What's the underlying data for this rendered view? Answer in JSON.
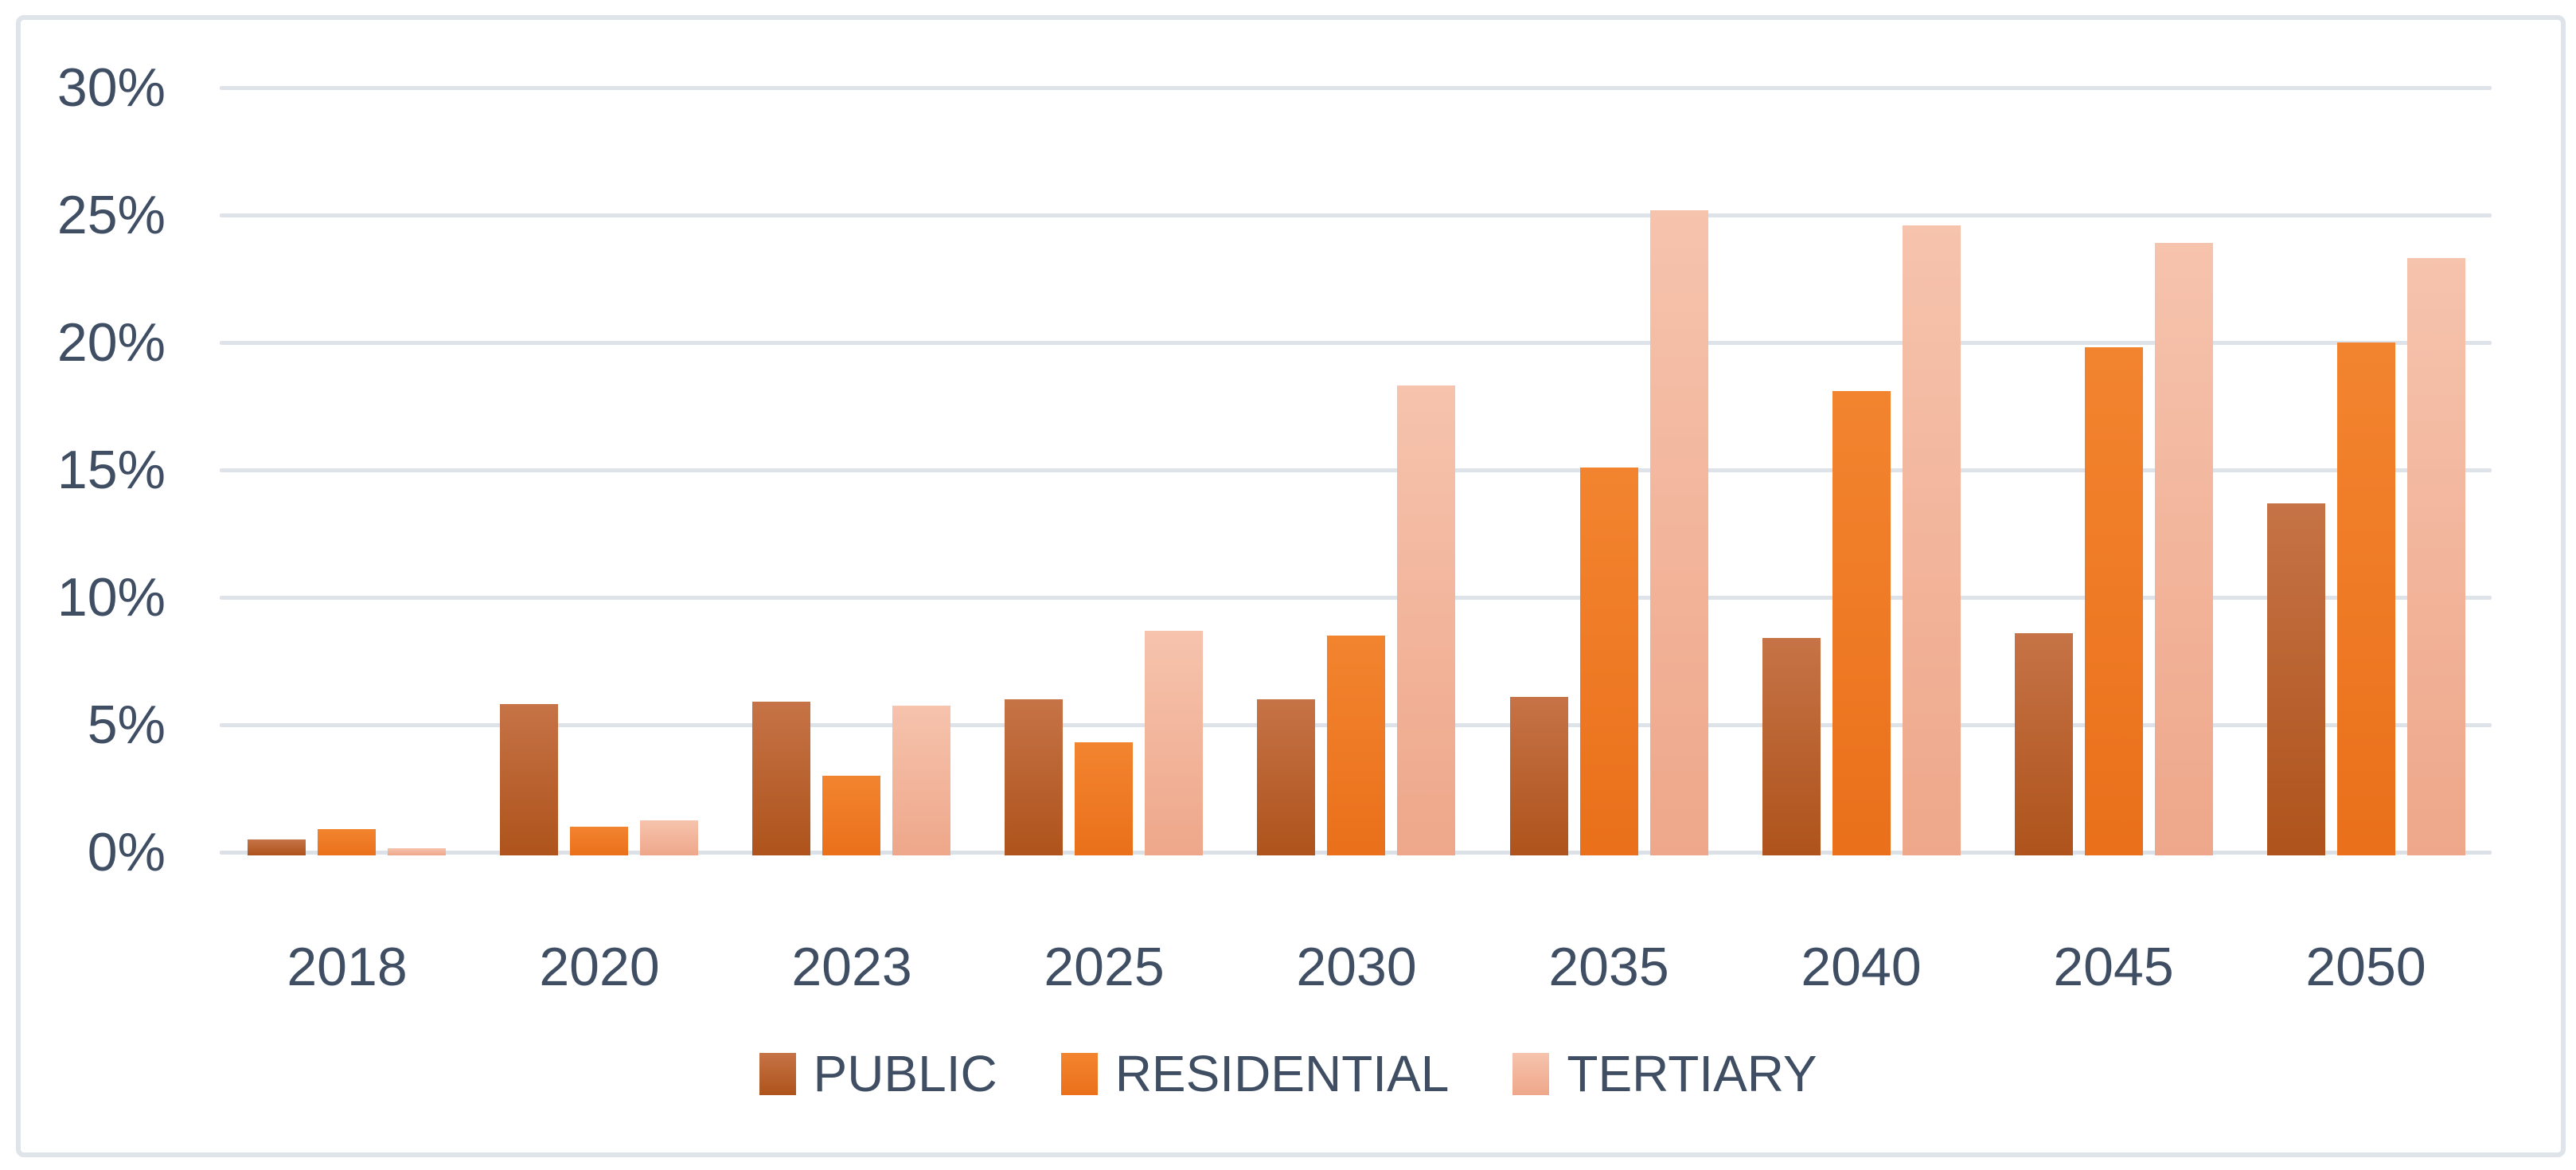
{
  "chart_data": {
    "type": "bar",
    "title": "",
    "xlabel": "",
    "ylabel": "",
    "categories": [
      "2018",
      "2020",
      "2023",
      "2025",
      "2030",
      "2035",
      "2040",
      "2045",
      "2050"
    ],
    "series": [
      {
        "name": "PUBLIC",
        "values": [
          0.5,
          5.8,
          5.9,
          6.0,
          6.0,
          6.1,
          8.4,
          8.6,
          13.7
        ],
        "color_top": "#C67347",
        "color_bottom": "#AE531B"
      },
      {
        "name": "RESIDENTIAL",
        "values": [
          0.9,
          1.0,
          3.0,
          4.3,
          8.5,
          15.1,
          18.1,
          19.8,
          20.0
        ],
        "color_top": "#F3842F",
        "color_bottom": "#EA701B"
      },
      {
        "name": "TERTIARY",
        "values": [
          0.15,
          1.25,
          5.75,
          8.7,
          18.3,
          25.2,
          24.6,
          23.9,
          23.3
        ],
        "color_top": "#F6C3AD",
        "color_bottom": "#EEA78A"
      }
    ],
    "y_ticks": [
      "0%",
      "5%",
      "10%",
      "15%",
      "20%",
      "25%",
      "30%"
    ],
    "ylim": [
      0,
      30
    ],
    "y_tick_step": 5,
    "grid": true,
    "legend_position": "bottom"
  },
  "style": {
    "text_color": "#3F4E63",
    "gridline_color": "#DEE2E9",
    "axisline_color": "#DCE1E8",
    "frame_border_color": "#DFE3EA",
    "background_color": "#FFFFFF"
  }
}
